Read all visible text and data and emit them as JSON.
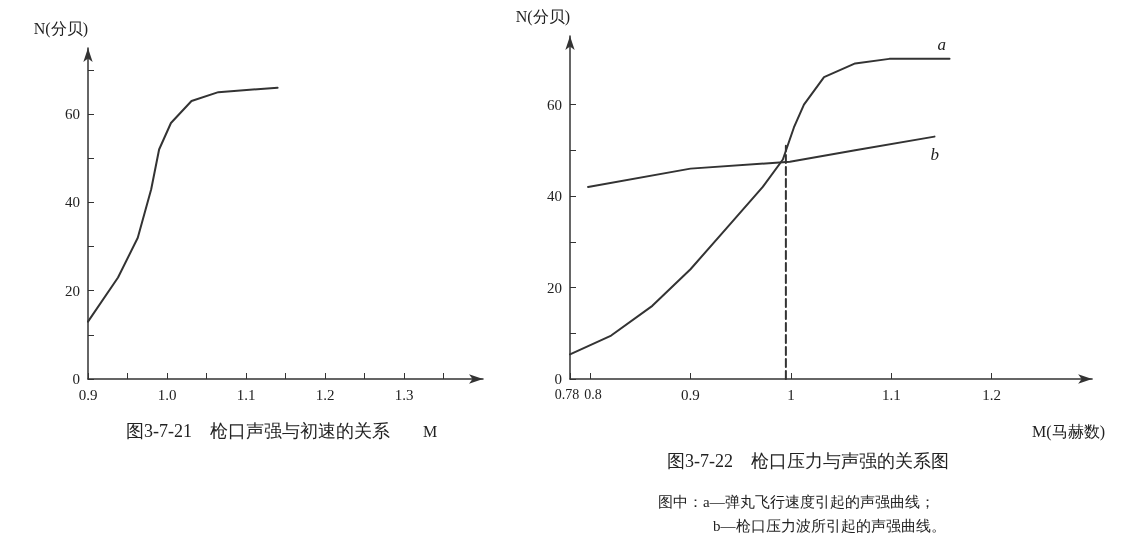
{
  "chart_data": [
    {
      "type": "line",
      "title": "图3-7-21　枪口声强与初速的关系",
      "xlabel": "M",
      "ylabel": "N(分贝)",
      "xlim": [
        0.9,
        1.4
      ],
      "ylim": [
        0,
        75
      ],
      "xticks": [
        0.9,
        {
          "value": 0.95,
          "label": null
        },
        {
          "value": 1.0,
          "label": "1.0"
        },
        {
          "value": 1.05,
          "label": null
        },
        1.1,
        {
          "value": 1.15,
          "label": null
        },
        1.2,
        {
          "value": 1.25,
          "label": null
        },
        1.3,
        {
          "value": 1.35,
          "label": null
        }
      ],
      "yticks": [
        0,
        {
          "value": 10,
          "label": null
        },
        20,
        {
          "value": 30,
          "label": null
        },
        40,
        {
          "value": 50,
          "label": null
        },
        60,
        {
          "value": 70,
          "label": null
        }
      ],
      "grid": false,
      "legend": false,
      "marker": "none",
      "line_style": "solid",
      "series": [
        {
          "color": "#333333",
          "x": [
            0.9,
            0.938,
            0.963,
            0.98,
            0.99,
            1.005,
            1.031,
            1.065,
            1.14
          ],
          "values": [
            13,
            23,
            32,
            43,
            52,
            58,
            63,
            65,
            66
          ]
        }
      ]
    },
    {
      "type": "line",
      "title": "图3-7-22　枪口压力与声强的关系图",
      "xlabel": "M(马赫数)",
      "ylabel": "N(分贝)",
      "xlim": [
        0.78,
        1.3
      ],
      "ylim": [
        0,
        75
      ],
      "annotations": [
        "图中：a—弹丸飞行速度引起的声强曲线；",
        "b—枪口压力波所引起的声强曲线。"
      ],
      "xticks": [
        0.78,
        0.8,
        0.9,
        1,
        1.1,
        1.2
      ],
      "yticks": [
        0,
        {
          "value": 10,
          "label": null
        },
        20,
        {
          "value": 30,
          "label": null
        },
        40,
        {
          "value": 50,
          "label": null
        },
        60
      ],
      "grid": false,
      "legend": false,
      "marker": "none",
      "series": [
        {
          "name": "a",
          "color": "#333333",
          "x": [
            0.78,
            0.821,
            0.862,
            0.9,
            0.936,
            0.972,
            0.992,
            1.003,
            1.013,
            1.033,
            1.064,
            1.098,
            1.158
          ],
          "values": [
            5.4,
            9.5,
            16,
            24,
            33,
            42,
            48,
            55,
            60,
            66,
            69,
            70,
            70
          ],
          "line_style": "solid"
        },
        {
          "name": "b",
          "color": "#333333",
          "x": [
            0.798,
            0.9,
            0.999,
            1.064,
            1.143
          ],
          "values": [
            42,
            46,
            47.5,
            50,
            53
          ],
          "line_style": "solid"
        },
        {
          "color": "#333333",
          "x": [
            0.995,
            0.995
          ],
          "values": [
            0,
            51
          ],
          "line_style": "dashed"
        }
      ]
    }
  ]
}
